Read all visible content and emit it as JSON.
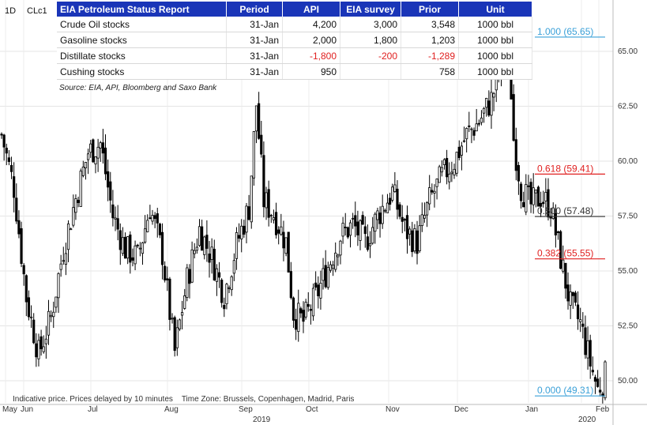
{
  "header": {
    "interval": "1D",
    "symbol": "CLc1"
  },
  "eia_table": {
    "columns": [
      "EIA Petroleum Status Report",
      "Period",
      "API",
      "EIA survey",
      "Prior",
      "Unit"
    ],
    "rows": [
      {
        "name": "Crude Oil stocks",
        "period": "31-Jan",
        "api": "4,200",
        "survey": "3,000",
        "prior": "3,548",
        "unit": "1000 bbl"
      },
      {
        "name": "Gasoline stocks",
        "period": "31-Jan",
        "api": "2,000",
        "survey": "1,800",
        "prior": "1,203",
        "unit": "1000 bbl"
      },
      {
        "name": "Distillate stocks",
        "period": "31-Jan",
        "api": "-1,800",
        "survey": "-200",
        "prior": "-1,289",
        "unit": "1000 bbl"
      },
      {
        "name": "Cushing stocks",
        "period": "31-Jan",
        "api": "950",
        "survey": "",
        "prior": "758",
        "unit": "1000 bbl"
      }
    ],
    "source": "Source: EIA, API, Bloomberg and Saxo Bank"
  },
  "footer": {
    "note": "Indicative price. Prices delayed by 10 minutes    Time Zone: Brussels, Copenhagen, Madrid, Paris"
  },
  "colors": {
    "fib_top": "#3aa0d8",
    "fib_618": "#e02020",
    "fib_500": "#333333",
    "fib_382": "#e02020",
    "fib_zero": "#3aa0d8",
    "candle": "#000000"
  },
  "chart_data": {
    "type": "candlestick",
    "title": "",
    "xlabel": "",
    "ylabel": "",
    "ylim": [
      49.0,
      66.5
    ],
    "yticks": [
      "50.00",
      "52.50",
      "55.00",
      "57.50",
      "60.00",
      "62.50",
      "65.00"
    ],
    "xticks": [
      "May",
      "Jun",
      "Jul",
      "Aug",
      "Sep",
      "Oct",
      "Nov",
      "Dec",
      "Jan",
      "2020",
      "Feb"
    ],
    "year_label": "2019",
    "grid": true,
    "fib_levels": [
      {
        "label": "1.000 (65.65)",
        "value": 65.65
      },
      {
        "label": "0.618 (59.41)",
        "value": 59.41
      },
      {
        "label": "0.500 (57.48)",
        "value": 57.48
      },
      {
        "label": "0.382 (55.55)",
        "value": 55.55
      },
      {
        "label": "0.000 (49.31)",
        "value": 49.31
      }
    ],
    "close_path": [
      [
        0,
        61.2
      ],
      [
        5,
        58.8
      ],
      [
        10,
        53.8
      ],
      [
        15,
        51.2
      ],
      [
        20,
        52.9
      ],
      [
        25,
        56.0
      ],
      [
        30,
        58.3
      ],
      [
        35,
        60.4
      ],
      [
        40,
        60.8
      ],
      [
        45,
        57.5
      ],
      [
        50,
        56.0
      ],
      [
        55,
        55.6
      ],
      [
        60,
        57.9
      ],
      [
        65,
        55.8
      ],
      [
        70,
        51.3
      ],
      [
        75,
        54.6
      ],
      [
        80,
        56.9
      ],
      [
        85,
        55.6
      ],
      [
        90,
        53.9
      ],
      [
        95,
        56.2
      ],
      [
        100,
        57.9
      ],
      [
        103,
        62.6
      ],
      [
        106,
        58.2
      ],
      [
        110,
        57.6
      ],
      [
        115,
        56.3
      ],
      [
        118,
        53.1
      ],
      [
        122,
        52.7
      ],
      [
        127,
        53.8
      ],
      [
        132,
        55.2
      ],
      [
        137,
        56.6
      ],
      [
        142,
        57.1
      ],
      [
        147,
        56.3
      ],
      [
        152,
        57.5
      ],
      [
        158,
        58.6
      ],
      [
        163,
        56.9
      ],
      [
        168,
        56.3
      ],
      [
        173,
        58.2
      ],
      [
        178,
        59.3
      ],
      [
        183,
        60.0
      ],
      [
        188,
        61.2
      ],
      [
        193,
        61.8
      ],
      [
        198,
        62.8
      ],
      [
        203,
        64.7
      ],
      [
        205,
        65.4
      ],
      [
        207,
        61.0
      ],
      [
        210,
        58.8
      ],
      [
        214,
        58.0
      ],
      [
        218,
        58.4
      ],
      [
        222,
        57.9
      ],
      [
        226,
        55.6
      ],
      [
        230,
        53.4
      ],
      [
        234,
        52.6
      ],
      [
        238,
        50.8
      ],
      [
        241,
        49.6
      ],
      [
        244,
        50.2
      ]
    ],
    "bar_count": 245
  }
}
